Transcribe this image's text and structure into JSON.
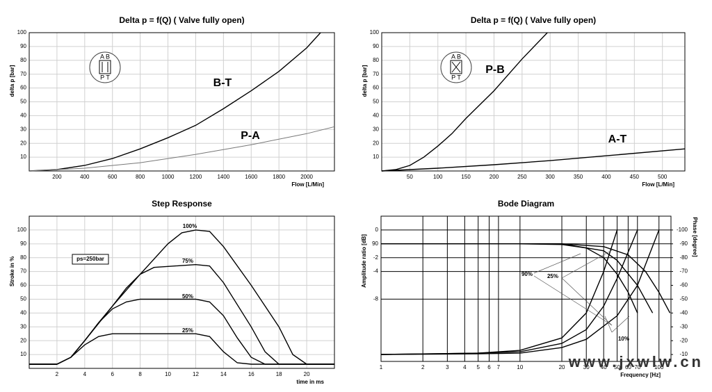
{
  "chart_data": [
    {
      "type": "line",
      "title": "Delta p = f(Q)  ( Valve fully open)",
      "xlabel": "Flow [L/Min]",
      "ylabel": "delta p [bar]",
      "xlim": [
        0,
        2200
      ],
      "ylim": [
        0,
        100
      ],
      "xticks": [
        200,
        400,
        600,
        800,
        1000,
        1200,
        1400,
        1600,
        1800,
        2000
      ],
      "yticks": [
        10,
        20,
        30,
        40,
        50,
        60,
        70,
        80,
        90,
        100
      ],
      "grid": true,
      "symbol": [
        "A B",
        "P T"
      ],
      "series": [
        {
          "name": "B-T",
          "color": "#000000",
          "x": [
            0,
            200,
            400,
            600,
            800,
            1000,
            1200,
            1400,
            1600,
            1800,
            2000,
            2100
          ],
          "values": [
            0,
            1,
            4,
            9,
            16,
            24,
            33,
            45,
            58,
            72,
            89,
            100
          ]
        },
        {
          "name": "P-A",
          "color": "#777777",
          "x": [
            0,
            400,
            800,
            1200,
            1600,
            2000,
            2200
          ],
          "values": [
            0,
            2,
            6,
            12,
            19,
            27,
            32
          ]
        }
      ]
    },
    {
      "type": "line",
      "title": "Delta p = f(Q)  ( Valve fully open)",
      "xlabel": "Flow [L/Min]",
      "ylabel": "delta p [bar]",
      "xlim": [
        0,
        540
      ],
      "ylim": [
        0,
        100
      ],
      "xticks": [
        50,
        100,
        150,
        200,
        250,
        300,
        350,
        400,
        450,
        500
      ],
      "yticks": [
        10,
        20,
        30,
        40,
        50,
        60,
        70,
        80,
        90,
        100
      ],
      "grid": true,
      "symbol": [
        "A B",
        "P T"
      ],
      "series": [
        {
          "name": "P-B",
          "color": "#000000",
          "x": [
            0,
            25,
            50,
            75,
            100,
            125,
            150,
            200,
            250,
            295
          ],
          "values": [
            0,
            1,
            4,
            10,
            18,
            27,
            38,
            58,
            81,
            100
          ]
        },
        {
          "name": "A-T",
          "color": "#000000",
          "x": [
            0,
            100,
            200,
            300,
            400,
            540
          ],
          "values": [
            0,
            2,
            4.5,
            7.5,
            11,
            16
          ]
        }
      ]
    },
    {
      "type": "line",
      "title": "Step Response",
      "xlabel": "time in ms",
      "ylabel": "Stroke in %",
      "xlim": [
        0,
        22
      ],
      "ylim": [
        0,
        110
      ],
      "xticks": [
        2,
        4,
        6,
        8,
        10,
        12,
        14,
        16,
        18,
        20
      ],
      "yticks": [
        10,
        20,
        30,
        40,
        50,
        60,
        70,
        80,
        90,
        100
      ],
      "grid": true,
      "annotations": [
        "ps=250bar"
      ],
      "series": [
        {
          "name": "100%",
          "color": "#000000",
          "x": [
            0,
            2,
            3,
            4,
            6,
            8,
            10,
            11,
            12,
            13,
            14,
            16,
            18,
            19,
            20,
            22
          ],
          "values": [
            3,
            3,
            8,
            20,
            45,
            68,
            90,
            98,
            100,
            99,
            88,
            60,
            30,
            10,
            3,
            3
          ]
        },
        {
          "name": "75%",
          "color": "#000000",
          "x": [
            0,
            2,
            3,
            4,
            5,
            6,
            7,
            8,
            9,
            12,
            13,
            14,
            16,
            17,
            18,
            22
          ],
          "values": [
            3,
            3,
            8,
            20,
            33,
            45,
            58,
            68,
            73,
            75,
            74,
            62,
            30,
            12,
            3,
            3
          ]
        },
        {
          "name": "50%",
          "color": "#000000",
          "x": [
            0,
            2,
            3,
            4,
            5,
            6,
            7,
            8,
            12,
            13,
            14,
            15,
            16,
            17,
            22
          ],
          "values": [
            3,
            3,
            8,
            20,
            33,
            43,
            48,
            50,
            50,
            48,
            38,
            22,
            8,
            3,
            3
          ]
        },
        {
          "name": "25%",
          "color": "#000000",
          "x": [
            0,
            2,
            3,
            4,
            5,
            6,
            8,
            12,
            13,
            14,
            15,
            16,
            22
          ],
          "values": [
            3,
            3,
            8,
            17,
            23,
            25,
            25,
            25,
            23,
            12,
            4,
            3,
            3
          ]
        }
      ]
    },
    {
      "type": "line",
      "title": "Bode Diagram",
      "xlabel": "Frequency [Hz]",
      "ylabel": "Amplitude ratio [dB]",
      "y2label": "Phase [degree]",
      "xscale": "log",
      "xlim": [
        1,
        122
      ],
      "ylim": [
        -9.5,
        1
      ],
      "y2lim": [
        -5,
        -110
      ],
      "xticks": [
        1,
        2,
        3,
        4,
        5,
        6,
        7,
        10,
        20,
        30,
        40,
        50,
        60,
        70,
        100
      ],
      "yticks": [
        0,
        {
          "value": -1,
          "label": "90"
        },
        -2,
        {
          "value": -3,
          "label": "-4"
        },
        {
          "value": -5,
          "label": "-8"
        }
      ],
      "y2ticks": [
        -100,
        -90,
        -80,
        -70,
        -60,
        -50,
        -40,
        -30,
        -20,
        -10
      ],
      "grid": true,
      "annotations": [
        "90%",
        "25%",
        "10%"
      ],
      "series": [
        {
          "color": "#000000",
          "x": [
            1,
            10,
            20,
            30,
            40,
            50,
            60,
            70
          ],
          "values": [
            -1,
            -1,
            -1.05,
            -1.3,
            -2,
            -3.2,
            -4.5,
            -6
          ]
        },
        {
          "color": "#000000",
          "x": [
            1,
            10,
            20,
            40,
            50,
            70,
            90
          ],
          "values": [
            -1,
            -1,
            -1,
            -1.5,
            -2.2,
            -4,
            -6
          ]
        },
        {
          "color": "#000000",
          "x": [
            1,
            10,
            20,
            40,
            60,
            80,
            100,
            120
          ],
          "values": [
            -1,
            -1,
            -1,
            -1.2,
            -1.8,
            -3,
            -4.5,
            -6
          ]
        },
        {
          "color": "#000000",
          "axis": "y2",
          "x": [
            1,
            5,
            10,
            20,
            30,
            40,
            50
          ],
          "values": [
            -10,
            -11,
            -13,
            -22,
            -40,
            -70,
            -100
          ]
        },
        {
          "color": "#000000",
          "axis": "y2",
          "x": [
            1,
            5,
            10,
            20,
            30,
            40,
            50,
            70
          ],
          "values": [
            -10,
            -11,
            -12,
            -18,
            -28,
            -45,
            -65,
            -100
          ]
        },
        {
          "color": "#000000",
          "axis": "y2",
          "x": [
            1,
            5,
            10,
            20,
            30,
            50,
            70,
            100
          ],
          "values": [
            -10,
            -10.5,
            -11,
            -15,
            -21,
            -38,
            -60,
            -100
          ]
        }
      ]
    }
  ],
  "watermark": "www.jxwlw.cn"
}
